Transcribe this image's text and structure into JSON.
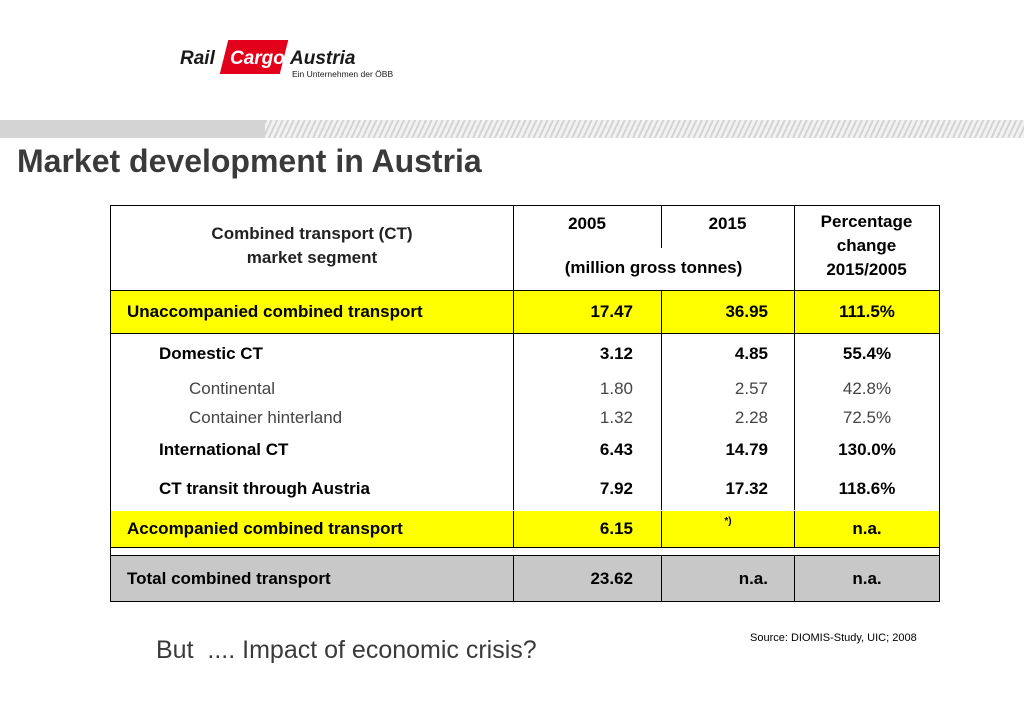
{
  "logo": {
    "rail": "Rail",
    "cargo": "Cargo",
    "austria": "Austria",
    "subtitle": "Ein Unternehmen der ÖBB"
  },
  "title": "Market development in Austria",
  "table": {
    "header": {
      "segment_line1": "Combined transport (CT)",
      "segment_line2": "market segment",
      "year1": "2005",
      "year2": "2015",
      "units": "(million gross tonnes)",
      "pct_line1": "Percentage",
      "pct_line2": "change",
      "pct_line3": "2015/2005"
    },
    "rows": [
      {
        "label": "Unaccompanied combined transport",
        "v2005": "17.47",
        "v2015": "36.95",
        "pct": "111.5%"
      },
      {
        "label": "Domestic CT",
        "v2005": "3.12",
        "v2015": "4.85",
        "pct": "55.4%"
      },
      {
        "label": "Continental",
        "v2005": "1.80",
        "v2015": "2.57",
        "pct": "42.8%"
      },
      {
        "label": "Container hinterland",
        "v2005": "1.32",
        "v2015": "2.28",
        "pct": "72.5%"
      },
      {
        "label": "International CT",
        "v2005": "6.43",
        "v2015": "14.79",
        "pct": "130.0%"
      },
      {
        "label": "CT transit through Austria",
        "v2005": "7.92",
        "v2015": "17.32",
        "pct": "118.6%"
      },
      {
        "label": "Accompanied combined transport",
        "v2005": "6.15",
        "v2015": "*)",
        "pct": "n.a."
      },
      {
        "label": "Total combined transport",
        "v2005": "23.62",
        "v2015": "n.a.",
        "pct": "n.a."
      }
    ]
  },
  "source": "Source: DIOMIS-Study, UIC; 2008",
  "question": "But  .... Impact of economic crisis?",
  "colors": {
    "highlight": "#ffff00",
    "total_row": "#c8c8c8",
    "brand_red": "#e2001a"
  }
}
